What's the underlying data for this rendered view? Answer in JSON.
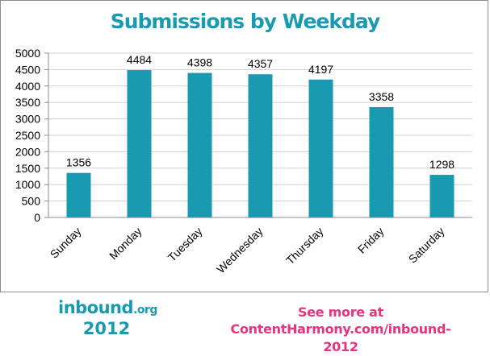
{
  "chart_data": {
    "type": "bar",
    "title": "Submissions by Weekday",
    "categories": [
      "Sunday",
      "Monday",
      "Tuesday",
      "Wednesday",
      "Thursday",
      "Friday",
      "Saturday"
    ],
    "values": [
      1356,
      4484,
      4398,
      4357,
      4197,
      3358,
      1298
    ],
    "data_labels": [
      "1356",
      "4484",
      "4398",
      "4357",
      "4197",
      "3358",
      "1298"
    ],
    "xlabel": "",
    "ylabel": "",
    "ylim": [
      0,
      5000
    ],
    "yticks": [
      0,
      500,
      1000,
      1500,
      2000,
      2500,
      3000,
      3500,
      4000,
      4500,
      5000
    ],
    "ytick_labels": [
      "0",
      "500",
      "1000",
      "1500",
      "2000",
      "2500",
      "3000",
      "3500",
      "4000",
      "4500",
      "5000"
    ],
    "grid": true,
    "legend": "none",
    "bar_color": "#1a9ab0",
    "grid_color": "#d0d0d0"
  },
  "footer": {
    "brand_name": "inbound",
    "brand_suffix": ".org",
    "brand_year": "2012",
    "see_more": "See more at",
    "see_more_link": "ContentHarmony.com/inbound-2012",
    "brand_color": "#1a9ab0",
    "link_color": "#e8337f"
  }
}
